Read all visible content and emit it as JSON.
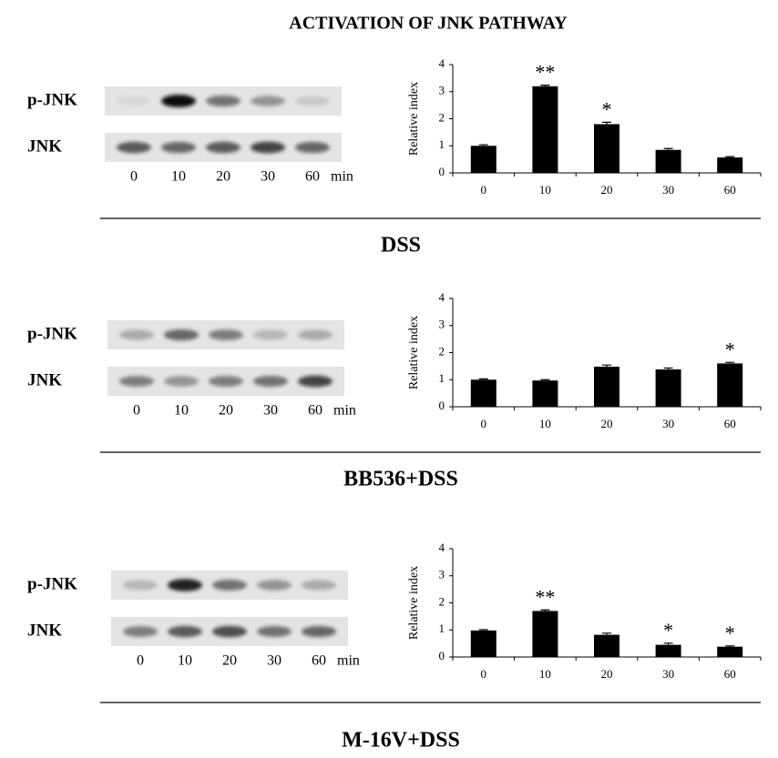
{
  "title": "ACTIVATION OF JNK PATHWAY",
  "panels": [
    {
      "group": "DSS",
      "blot_rows": [
        "p-JNK",
        "JNK"
      ],
      "lanes": [
        "0",
        "10",
        "20",
        "30",
        "60"
      ],
      "lane_unit": "min"
    },
    {
      "group": "BB536+DSS",
      "blot_rows": [
        "p-JNK",
        "JNK"
      ],
      "lanes": [
        "0",
        "10",
        "20",
        "30",
        "60"
      ],
      "lane_unit": "min"
    },
    {
      "group": "M-16V+DSS",
      "blot_rows": [
        "p-JNK",
        "JNK"
      ],
      "lanes": [
        "0",
        "10",
        "20",
        "30",
        "60"
      ],
      "lane_unit": "min"
    }
  ],
  "chart_data": [
    {
      "type": "bar",
      "categories": [
        "0",
        "10",
        "20",
        "30",
        "60"
      ],
      "values": [
        1.0,
        3.2,
        1.8,
        0.85,
        0.57
      ],
      "errors": [
        0.04,
        0.04,
        0.07,
        0.05,
        0.03
      ],
      "annotations": [
        null,
        "**",
        "*",
        null,
        null
      ],
      "ylabel": "Relative index",
      "ylim": [
        0,
        4
      ],
      "yticks": [
        0,
        1,
        2,
        3,
        4
      ],
      "color": "#000000"
    },
    {
      "type": "bar",
      "categories": [
        "0",
        "10",
        "20",
        "30",
        "60"
      ],
      "values": [
        1.0,
        0.97,
        1.48,
        1.38,
        1.6
      ],
      "errors": [
        0.03,
        0.03,
        0.06,
        0.05,
        0.04
      ],
      "annotations": [
        null,
        null,
        null,
        null,
        "*"
      ],
      "ylabel": "Relative index",
      "ylim": [
        0,
        4
      ],
      "yticks": [
        0,
        1,
        2,
        3,
        4
      ],
      "color": "#000000"
    },
    {
      "type": "bar",
      "categories": [
        "0",
        "10",
        "20",
        "30",
        "60"
      ],
      "values": [
        0.98,
        1.7,
        0.82,
        0.45,
        0.38
      ],
      "errors": [
        0.03,
        0.04,
        0.06,
        0.06,
        0.03
      ],
      "annotations": [
        null,
        "**",
        null,
        "*",
        "*"
      ],
      "ylabel": "Relative index",
      "ylim": [
        0,
        4
      ],
      "yticks": [
        0,
        1,
        2,
        3,
        4
      ],
      "color": "#000000"
    }
  ]
}
